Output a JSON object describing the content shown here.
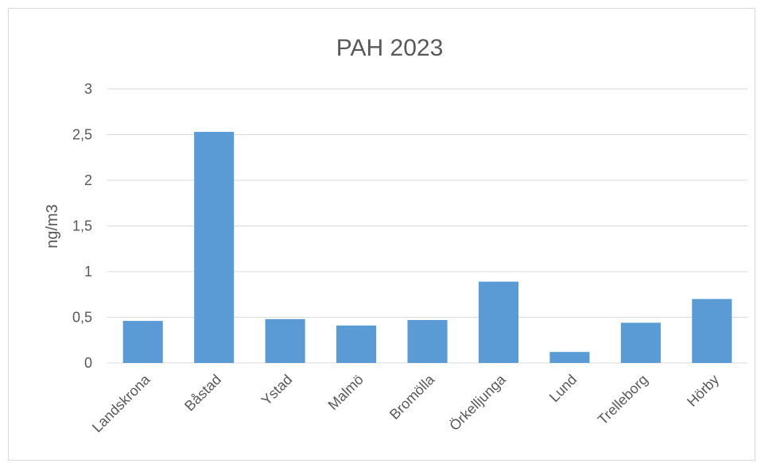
{
  "chart_data": {
    "type": "bar",
    "title": "PAH 2023",
    "xlabel": "",
    "ylabel": "ng/m3",
    "ylim": [
      0,
      3
    ],
    "yticks": [
      "0",
      "0,5",
      "1",
      "1,5",
      "2",
      "2,5",
      "3"
    ],
    "ytick_values": [
      0,
      0.5,
      1,
      1.5,
      2,
      2.5,
      3
    ],
    "grid": true,
    "categories": [
      "Landskrona",
      "Båstad",
      "Ystad",
      "Malmö",
      "Bromölla",
      "Örkelljunga",
      "Lund",
      "Trelleborg",
      "Hörby"
    ],
    "values": [
      0.46,
      2.53,
      0.48,
      0.41,
      0.47,
      0.89,
      0.12,
      0.44,
      0.7
    ],
    "bar_color": "#5b9bd5"
  }
}
